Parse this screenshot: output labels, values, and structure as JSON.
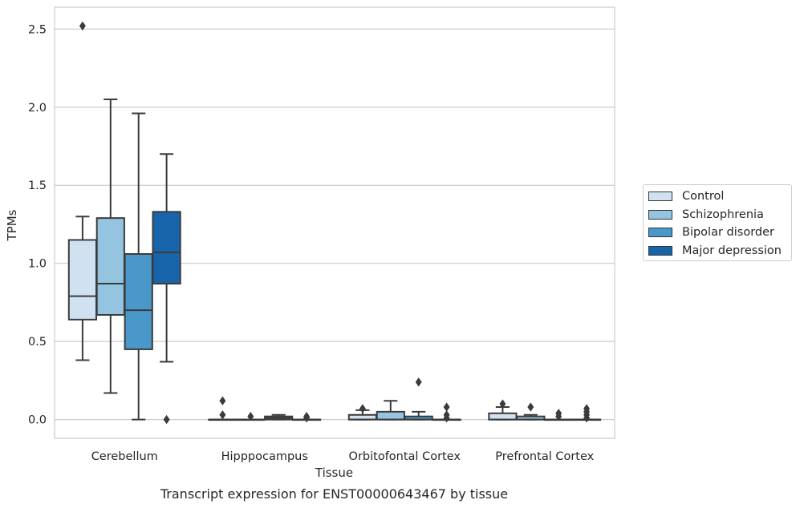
{
  "chart_data": {
    "type": "box",
    "title": "",
    "xlabel": "Tissue",
    "ylabel": "TPMs",
    "footnote": "Transcript expression for ENST00000643467 by tissue",
    "ylim": [
      -0.12,
      2.64
    ],
    "yticks": [
      0.0,
      0.5,
      1.0,
      1.5,
      2.0,
      2.5
    ],
    "ytick_labels": [
      "0.0",
      "0.5",
      "1.0",
      "1.5",
      "2.0",
      "2.5"
    ],
    "grid": "horizontal",
    "legend_position": "right",
    "categories": [
      "Cerebellum",
      "Hipppocampus",
      "Orbitofontal Cortex",
      "Prefrontal Cortex"
    ],
    "series": [
      {
        "name": "Control",
        "color": "#d0e1f2",
        "boxes": [
          {
            "whislo": 0.38,
            "q1": 0.64,
            "med": 0.79,
            "q3": 1.15,
            "whishi": 1.3,
            "fliers": [
              2.52
            ]
          },
          {
            "whislo": 0.0,
            "q1": 0.0,
            "med": 0.0,
            "q3": 0.0,
            "whishi": 0.0,
            "fliers": [
              0.03,
              0.12
            ]
          },
          {
            "whislo": 0.0,
            "q1": 0.0,
            "med": 0.0,
            "q3": 0.03,
            "whishi": 0.06,
            "fliers": [
              0.07
            ]
          },
          {
            "whislo": 0.0,
            "q1": 0.0,
            "med": 0.0,
            "q3": 0.04,
            "whishi": 0.08,
            "fliers": [
              0.1
            ]
          }
        ]
      },
      {
        "name": "Schizophrenia",
        "color": "#94c4df",
        "boxes": [
          {
            "whislo": 0.17,
            "q1": 0.67,
            "med": 0.87,
            "q3": 1.29,
            "whishi": 2.05,
            "fliers": []
          },
          {
            "whislo": 0.0,
            "q1": 0.0,
            "med": 0.0,
            "q3": 0.0,
            "whishi": 0.0,
            "fliers": [
              0.02
            ]
          },
          {
            "whislo": 0.0,
            "q1": 0.0,
            "med": 0.0,
            "q3": 0.05,
            "whishi": 0.12,
            "fliers": []
          },
          {
            "whislo": 0.0,
            "q1": 0.0,
            "med": 0.0,
            "q3": 0.02,
            "whishi": 0.03,
            "fliers": [
              0.08
            ]
          }
        ]
      },
      {
        "name": "Bipolar disorder",
        "color": "#4a98c9",
        "boxes": [
          {
            "whislo": 0.0,
            "q1": 0.45,
            "med": 0.7,
            "q3": 1.06,
            "whishi": 1.96,
            "fliers": []
          },
          {
            "whislo": 0.0,
            "q1": 0.0,
            "med": 0.01,
            "q3": 0.02,
            "whishi": 0.03,
            "fliers": []
          },
          {
            "whislo": 0.0,
            "q1": 0.0,
            "med": 0.0,
            "q3": 0.02,
            "whishi": 0.05,
            "fliers": [
              0.24
            ]
          },
          {
            "whislo": 0.0,
            "q1": 0.0,
            "med": 0.0,
            "q3": 0.0,
            "whishi": 0.0,
            "fliers": [
              0.02,
              0.04
            ]
          }
        ]
      },
      {
        "name": "Major depression",
        "color": "#1764ab",
        "boxes": [
          {
            "whislo": 0.37,
            "q1": 0.87,
            "med": 1.07,
            "q3": 1.33,
            "whishi": 1.7,
            "fliers": [
              0.0
            ]
          },
          {
            "whislo": 0.0,
            "q1": 0.0,
            "med": 0.0,
            "q3": 0.0,
            "whishi": 0.0,
            "fliers": [
              0.01,
              0.02
            ]
          },
          {
            "whislo": 0.0,
            "q1": 0.0,
            "med": 0.0,
            "q3": 0.0,
            "whishi": 0.0,
            "fliers": [
              0.01,
              0.03,
              0.08
            ]
          },
          {
            "whislo": 0.0,
            "q1": 0.0,
            "med": 0.0,
            "q3": 0.0,
            "whishi": 0.0,
            "fliers": [
              0.01,
              0.03,
              0.05,
              0.07
            ]
          }
        ]
      }
    ]
  }
}
